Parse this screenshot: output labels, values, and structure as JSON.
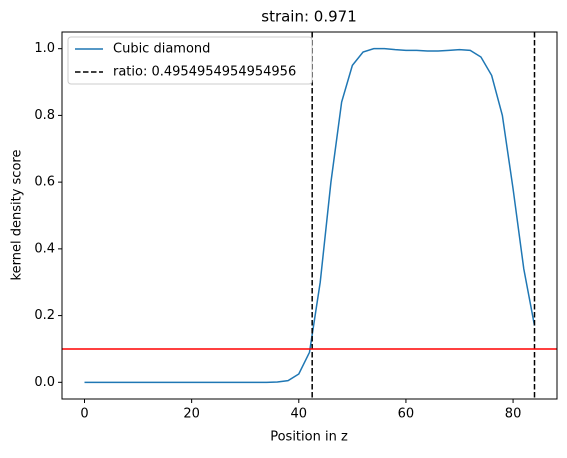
{
  "chart_data": {
    "type": "line",
    "title": "strain: 0.971",
    "xlabel": "Position in z",
    "ylabel": "kernel density score",
    "series": [
      {
        "name": "Cubic diamond",
        "color": "#1f77b4",
        "x": [
          0,
          2,
          4,
          6,
          8,
          10,
          12,
          14,
          16,
          18,
          20,
          22,
          24,
          26,
          28,
          30,
          32,
          34,
          36,
          38,
          40,
          42,
          44,
          46,
          48,
          50,
          52,
          54,
          56,
          58,
          60,
          62,
          64,
          66,
          68,
          70,
          72,
          74,
          76,
          78,
          80,
          82,
          84
        ],
        "values": [
          0,
          0,
          0,
          0,
          0,
          0,
          0,
          0,
          0,
          0,
          0,
          0,
          0,
          0,
          0,
          0,
          0,
          0,
          0.001,
          0.005,
          0.025,
          0.09,
          0.3,
          0.6,
          0.84,
          0.95,
          0.99,
          1.0,
          1.0,
          0.997,
          0.995,
          0.995,
          0.993,
          0.993,
          0.995,
          0.997,
          0.995,
          0.975,
          0.92,
          0.8,
          0.58,
          0.34,
          0.17
        ]
      }
    ],
    "vlines": {
      "name": "ratio: 0.4954954954954956",
      "color": "#000000",
      "x": [
        42.5,
        84
      ]
    },
    "hline": {
      "value": 0.1,
      "color": "#ff0000"
    },
    "xlim": [
      -4.2,
      88.2
    ],
    "ylim": [
      -0.05,
      1.05
    ],
    "xticks": [
      0,
      20,
      40,
      60,
      80
    ],
    "yticks": [
      {
        "value": 0,
        "label": "0.0"
      },
      {
        "value": 0.2,
        "label": "0.2"
      },
      {
        "value": 0.4,
        "label": "0.4"
      },
      {
        "value": 0.6,
        "label": "0.6"
      },
      {
        "value": 0.8,
        "label": "0.8"
      },
      {
        "value": 1,
        "label": "1.0"
      }
    ],
    "legend": "upper left"
  }
}
